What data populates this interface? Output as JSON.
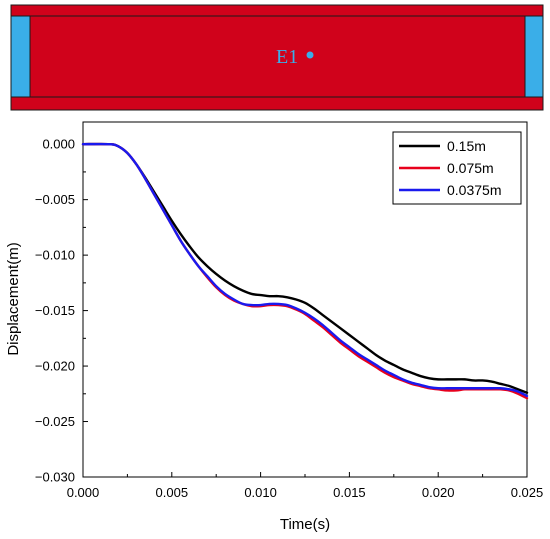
{
  "beam": {
    "label": "E1",
    "colors": {
      "beam": "#d0021b",
      "support": "#3aaee8",
      "edge": "#1a1a1a"
    }
  },
  "chart_data": {
    "type": "line",
    "title": "",
    "xlabel": "Time(s)",
    "ylabel": "Displacement(m)",
    "xlim": [
      0,
      0.025
    ],
    "ylim": [
      -0.03,
      0.002
    ],
    "x_ticks": [
      0,
      0.005,
      0.01,
      0.015,
      0.02,
      0.025
    ],
    "x_tick_labels": [
      "0.000",
      "0.005",
      "0.010",
      "0.015",
      "0.020",
      "0.025"
    ],
    "y_ticks": [
      0,
      -0.005,
      -0.01,
      -0.015,
      -0.02,
      -0.025,
      -0.03
    ],
    "y_tick_labels": [
      "0.000",
      "−0.005",
      "−0.010",
      "−0.015",
      "−0.020",
      "−0.025",
      "−0.030"
    ],
    "grid": false,
    "legend_position": "top-right",
    "x": [
      0,
      0.0015,
      0.002,
      0.0025,
      0.003,
      0.0035,
      0.004,
      0.0045,
      0.005,
      0.0055,
      0.006,
      0.0065,
      0.007,
      0.0075,
      0.008,
      0.0085,
      0.009,
      0.0095,
      0.01,
      0.0105,
      0.011,
      0.0115,
      0.012,
      0.0125,
      0.013,
      0.0135,
      0.014,
      0.0145,
      0.015,
      0.0155,
      0.016,
      0.0165,
      0.017,
      0.0175,
      0.018,
      0.0185,
      0.019,
      0.0195,
      0.02,
      0.0205,
      0.021,
      0.0215,
      0.022,
      0.0225,
      0.023,
      0.0235,
      0.024,
      0.0245,
      0.025
    ],
    "series": [
      {
        "name": "0.15m",
        "color": "#000000",
        "values": [
          0,
          0,
          -0.0002,
          -0.0008,
          -0.0018,
          -0.003,
          -0.0043,
          -0.0056,
          -0.0069,
          -0.0081,
          -0.0092,
          -0.0102,
          -0.011,
          -0.0117,
          -0.0123,
          -0.0128,
          -0.0132,
          -0.0135,
          -0.0136,
          -0.0137,
          -0.0137,
          -0.0138,
          -0.014,
          -0.0143,
          -0.0148,
          -0.0154,
          -0.016,
          -0.0166,
          -0.0172,
          -0.0178,
          -0.0184,
          -0.019,
          -0.0195,
          -0.0199,
          -0.0203,
          -0.0206,
          -0.0209,
          -0.0211,
          -0.0212,
          -0.0212,
          -0.0212,
          -0.0212,
          -0.0213,
          -0.0213,
          -0.0214,
          -0.0216,
          -0.0218,
          -0.0221,
          -0.0224
        ]
      },
      {
        "name": "0.075m",
        "color": "#e8001c",
        "values": [
          0,
          0,
          -0.0002,
          -0.0008,
          -0.0018,
          -0.0031,
          -0.0045,
          -0.0059,
          -0.0073,
          -0.0087,
          -0.0099,
          -0.011,
          -0.012,
          -0.0129,
          -0.0136,
          -0.0141,
          -0.0144,
          -0.0146,
          -0.0146,
          -0.0145,
          -0.0145,
          -0.0146,
          -0.0149,
          -0.0153,
          -0.0159,
          -0.0165,
          -0.0172,
          -0.0179,
          -0.0185,
          -0.0191,
          -0.0196,
          -0.0201,
          -0.0206,
          -0.021,
          -0.0213,
          -0.0216,
          -0.0218,
          -0.022,
          -0.0221,
          -0.0222,
          -0.0222,
          -0.0221,
          -0.0221,
          -0.0221,
          -0.0221,
          -0.0221,
          -0.0222,
          -0.0225,
          -0.0229
        ]
      },
      {
        "name": "0.0375m",
        "color": "#1a1aee",
        "values": [
          0,
          0,
          -0.0002,
          -0.0008,
          -0.0018,
          -0.0031,
          -0.0045,
          -0.0059,
          -0.0073,
          -0.0087,
          -0.0099,
          -0.011,
          -0.0119,
          -0.0128,
          -0.0135,
          -0.014,
          -0.0144,
          -0.0145,
          -0.0145,
          -0.0144,
          -0.0144,
          -0.0145,
          -0.0148,
          -0.0152,
          -0.0157,
          -0.0163,
          -0.017,
          -0.0177,
          -0.0183,
          -0.0189,
          -0.0194,
          -0.0199,
          -0.0204,
          -0.0208,
          -0.0212,
          -0.0215,
          -0.0217,
          -0.0219,
          -0.022,
          -0.022,
          -0.022,
          -0.022,
          -0.022,
          -0.022,
          -0.022,
          -0.022,
          -0.0221,
          -0.0223,
          -0.0227
        ]
      }
    ]
  }
}
